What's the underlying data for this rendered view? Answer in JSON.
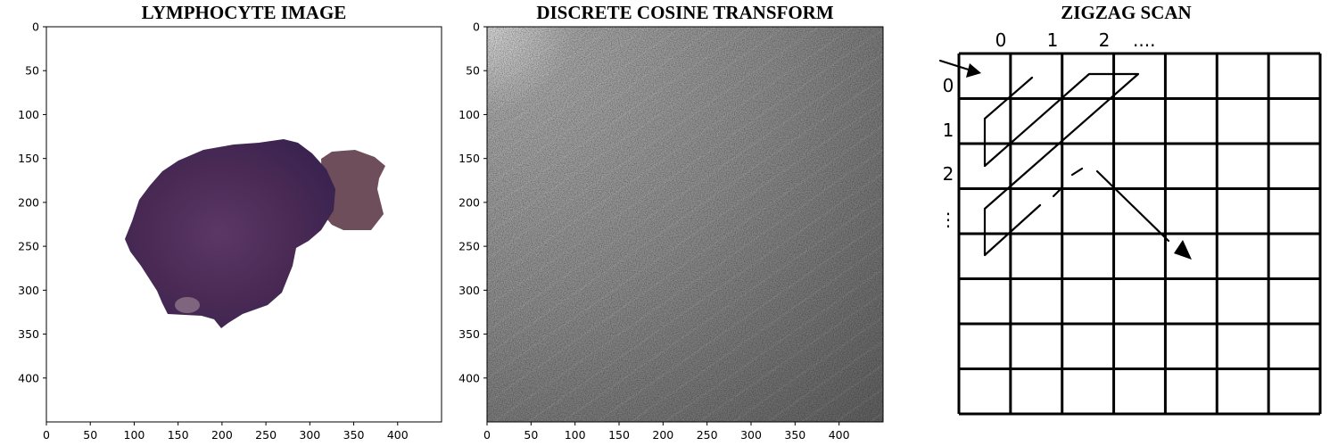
{
  "panels": [
    {
      "title": "LYMPHOCYTE IMAGE",
      "x_ticks": [
        "0",
        "50",
        "100",
        "150",
        "200",
        "250",
        "300",
        "350",
        "400"
      ],
      "y_ticks": [
        "0",
        "50",
        "100",
        "150",
        "200",
        "250",
        "300",
        "350",
        "400"
      ],
      "axis_range": [
        0,
        450
      ]
    },
    {
      "title": "DISCRETE COSINE TRANSFORM",
      "x_ticks": [
        "0",
        "50",
        "100",
        "150",
        "200",
        "250",
        "300",
        "350",
        "400"
      ],
      "y_ticks": [
        "0",
        "50",
        "100",
        "150",
        "200",
        "250",
        "300",
        "350",
        "400"
      ],
      "axis_range": [
        0,
        450
      ]
    }
  ],
  "zigzag": {
    "title": "ZIGZAG SCAN",
    "col_labels": [
      "0",
      "1",
      "2",
      "...."
    ],
    "row_labels": [
      "0",
      "1",
      "2",
      "⋮"
    ],
    "grid_rows": 8,
    "grid_cols": 7
  },
  "colors": {
    "cell_main": "#4a2a55",
    "cell_side": "#6e4e5a",
    "grid_line": "#000000"
  }
}
